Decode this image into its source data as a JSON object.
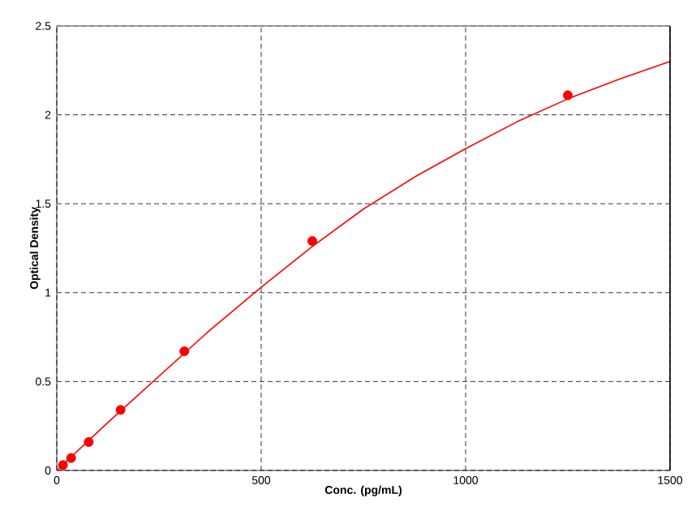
{
  "chart_data": {
    "type": "scatter",
    "xlabel": "Conc. (pg/mL)",
    "ylabel": "Optical Density",
    "series": [
      {
        "color": "#ff0000",
        "marker": "circle",
        "x": [
          15,
          35,
          78,
          156,
          312,
          625,
          1250
        ],
        "values": [
          0.03,
          0.07,
          0.16,
          0.34,
          0.67,
          1.29,
          2.11
        ]
      },
      {
        "type": "line",
        "color": "#ff0000",
        "marker": "none",
        "x": [
          0,
          125,
          250,
          375,
          500,
          625,
          750,
          875,
          1000,
          1125,
          1250,
          1375,
          1500
        ],
        "values": [
          0,
          0.27,
          0.53,
          0.79,
          1.03,
          1.26,
          1.47,
          1.65,
          1.81,
          1.96,
          2.09,
          2.2,
          2.3
        ]
      }
    ],
    "xlim": [
      0,
      1500
    ],
    "xticks": [
      0,
      500,
      1000,
      1500
    ],
    "ylim": [
      0,
      2.5
    ],
    "yticks": [
      0,
      0.5,
      1,
      1.5,
      2,
      2.5
    ],
    "grid": true
  }
}
